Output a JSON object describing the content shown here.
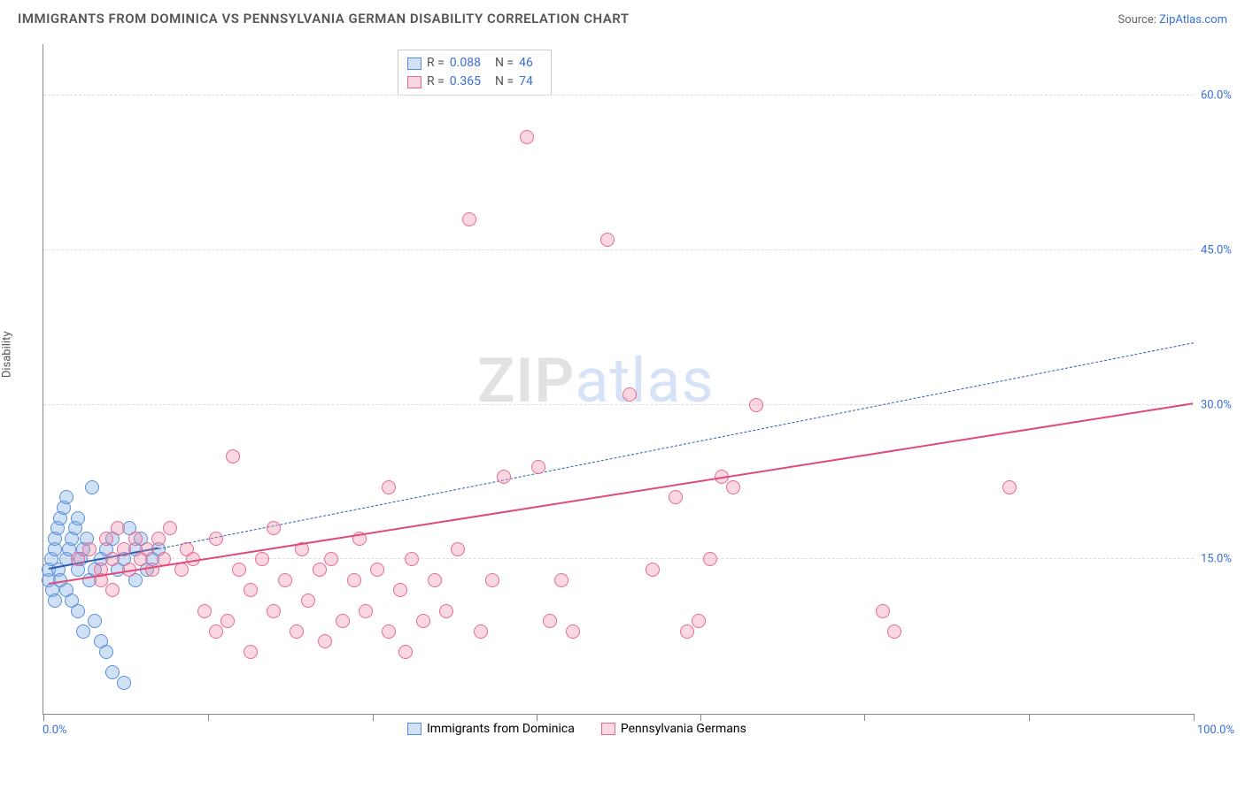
{
  "title": "IMMIGRANTS FROM DOMINICA VS PENNSYLVANIA GERMAN DISABILITY CORRELATION CHART",
  "source_prefix": "Source: ",
  "source_name": "ZipAtlas.com",
  "y_axis_label": "Disability",
  "watermark_left": "ZIP",
  "watermark_right": "atlas",
  "chart": {
    "type": "scatter",
    "background_color": "#ffffff",
    "grid_color": "#dddddd",
    "axis_color": "#888888",
    "x_min": 0,
    "x_max": 100,
    "y_min": 0,
    "y_max": 65,
    "x_tick_start": "0.0%",
    "x_tick_end": "100.0%",
    "x_tick_positions": [
      0,
      14.3,
      28.6,
      42.9,
      57.1,
      71.4,
      85.7,
      100
    ],
    "y_ticks": [
      {
        "value": 15,
        "label": "15.0%"
      },
      {
        "value": 30,
        "label": "30.0%"
      },
      {
        "value": 45,
        "label": "45.0%"
      },
      {
        "value": 60,
        "label": "60.0%"
      }
    ],
    "marker_radius": 8,
    "marker_border_width": 1.2,
    "series": [
      {
        "key": "dominica",
        "label": "Immigrants from Dominica",
        "fill": "rgba(120,170,230,0.35)",
        "stroke": "#5a8fd8",
        "R_label": "R =",
        "R": "0.088",
        "N_label": "N =",
        "N": "46",
        "trend": {
          "x1": 0.5,
          "y1": 14.0,
          "x2": 10,
          "y2": 16.0,
          "color": "#2a5db0",
          "width": 2,
          "dash": "none"
        },
        "extrapolate": {
          "x1": 10,
          "y1": 16.0,
          "x2": 100,
          "y2": 36.0,
          "color": "#2a5db0",
          "width": 1.2,
          "dash": "6,6"
        },
        "points": [
          [
            0.5,
            13
          ],
          [
            0.5,
            14
          ],
          [
            0.7,
            15
          ],
          [
            0.8,
            12
          ],
          [
            1,
            16
          ],
          [
            1,
            17
          ],
          [
            1.2,
            18
          ],
          [
            1.3,
            14
          ],
          [
            1.5,
            19
          ],
          [
            1.5,
            13
          ],
          [
            1.8,
            20
          ],
          [
            2,
            15
          ],
          [
            2,
            12
          ],
          [
            2.2,
            16
          ],
          [
            2.5,
            17
          ],
          [
            2.5,
            11
          ],
          [
            2.8,
            18
          ],
          [
            3,
            14
          ],
          [
            3,
            10
          ],
          [
            3.2,
            15
          ],
          [
            3.5,
            16
          ],
          [
            3.5,
            8
          ],
          [
            3.8,
            17
          ],
          [
            4,
            13
          ],
          [
            4.2,
            22
          ],
          [
            4.5,
            14
          ],
          [
            4.5,
            9
          ],
          [
            5,
            15
          ],
          [
            5,
            7
          ],
          [
            5.5,
            16
          ],
          [
            5.5,
            6
          ],
          [
            6,
            17
          ],
          [
            6,
            4
          ],
          [
            6.5,
            14
          ],
          [
            7,
            15
          ],
          [
            7,
            3
          ],
          [
            7.5,
            18
          ],
          [
            8,
            13
          ],
          [
            8,
            16
          ],
          [
            8.5,
            17
          ],
          [
            9,
            14
          ],
          [
            9.5,
            15
          ],
          [
            10,
            16
          ],
          [
            2,
            21
          ],
          [
            3,
            19
          ],
          [
            1,
            11
          ]
        ]
      },
      {
        "key": "pagerman",
        "label": "Pennsylvania Germans",
        "fill": "rgba(240,140,170,0.35)",
        "stroke": "#e76a94",
        "R_label": "R =",
        "R": "0.365",
        "N_label": "N =",
        "N": "74",
        "trend": {
          "x1": 0.5,
          "y1": 12.5,
          "x2": 100,
          "y2": 30.0,
          "color": "#e04a7a",
          "width": 2.5,
          "dash": "none"
        },
        "points": [
          [
            3,
            15
          ],
          [
            4,
            16
          ],
          [
            5,
            14
          ],
          [
            5.5,
            17
          ],
          [
            6,
            15
          ],
          [
            6.5,
            18
          ],
          [
            7,
            16
          ],
          [
            7.5,
            14
          ],
          [
            8,
            17
          ],
          [
            8.5,
            15
          ],
          [
            9,
            16
          ],
          [
            9.5,
            14
          ],
          [
            10,
            17
          ],
          [
            10.5,
            15
          ],
          [
            11,
            18
          ],
          [
            12,
            14
          ],
          [
            12.5,
            16
          ],
          [
            13,
            15
          ],
          [
            14,
            10
          ],
          [
            15,
            8
          ],
          [
            15,
            17
          ],
          [
            16,
            9
          ],
          [
            16.5,
            25
          ],
          [
            17,
            14
          ],
          [
            18,
            12
          ],
          [
            18,
            6
          ],
          [
            19,
            15
          ],
          [
            20,
            10
          ],
          [
            20,
            18
          ],
          [
            21,
            13
          ],
          [
            22,
            8
          ],
          [
            22.5,
            16
          ],
          [
            23,
            11
          ],
          [
            24,
            14
          ],
          [
            24.5,
            7
          ],
          [
            25,
            15
          ],
          [
            26,
            9
          ],
          [
            27,
            13
          ],
          [
            27.5,
            17
          ],
          [
            28,
            10
          ],
          [
            29,
            14
          ],
          [
            30,
            8
          ],
          [
            30,
            22
          ],
          [
            31,
            12
          ],
          [
            31.5,
            6
          ],
          [
            32,
            15
          ],
          [
            33,
            9
          ],
          [
            34,
            13
          ],
          [
            35,
            10
          ],
          [
            36,
            16
          ],
          [
            37,
            48
          ],
          [
            38,
            8
          ],
          [
            39,
            13
          ],
          [
            40,
            23
          ],
          [
            42,
            56
          ],
          [
            43,
            24
          ],
          [
            44,
            9
          ],
          [
            45,
            13
          ],
          [
            46,
            8
          ],
          [
            49,
            46
          ],
          [
            51,
            31
          ],
          [
            53,
            14
          ],
          [
            55,
            21
          ],
          [
            56,
            8
          ],
          [
            57,
            9
          ],
          [
            58,
            15
          ],
          [
            59,
            23
          ],
          [
            60,
            22
          ],
          [
            62,
            30
          ],
          [
            73,
            10
          ],
          [
            74,
            8
          ],
          [
            84,
            22
          ],
          [
            5,
            13
          ],
          [
            6,
            12
          ]
        ]
      }
    ]
  },
  "colors": {
    "blue_text": "#3a6fd8",
    "gray_text": "#555555"
  }
}
